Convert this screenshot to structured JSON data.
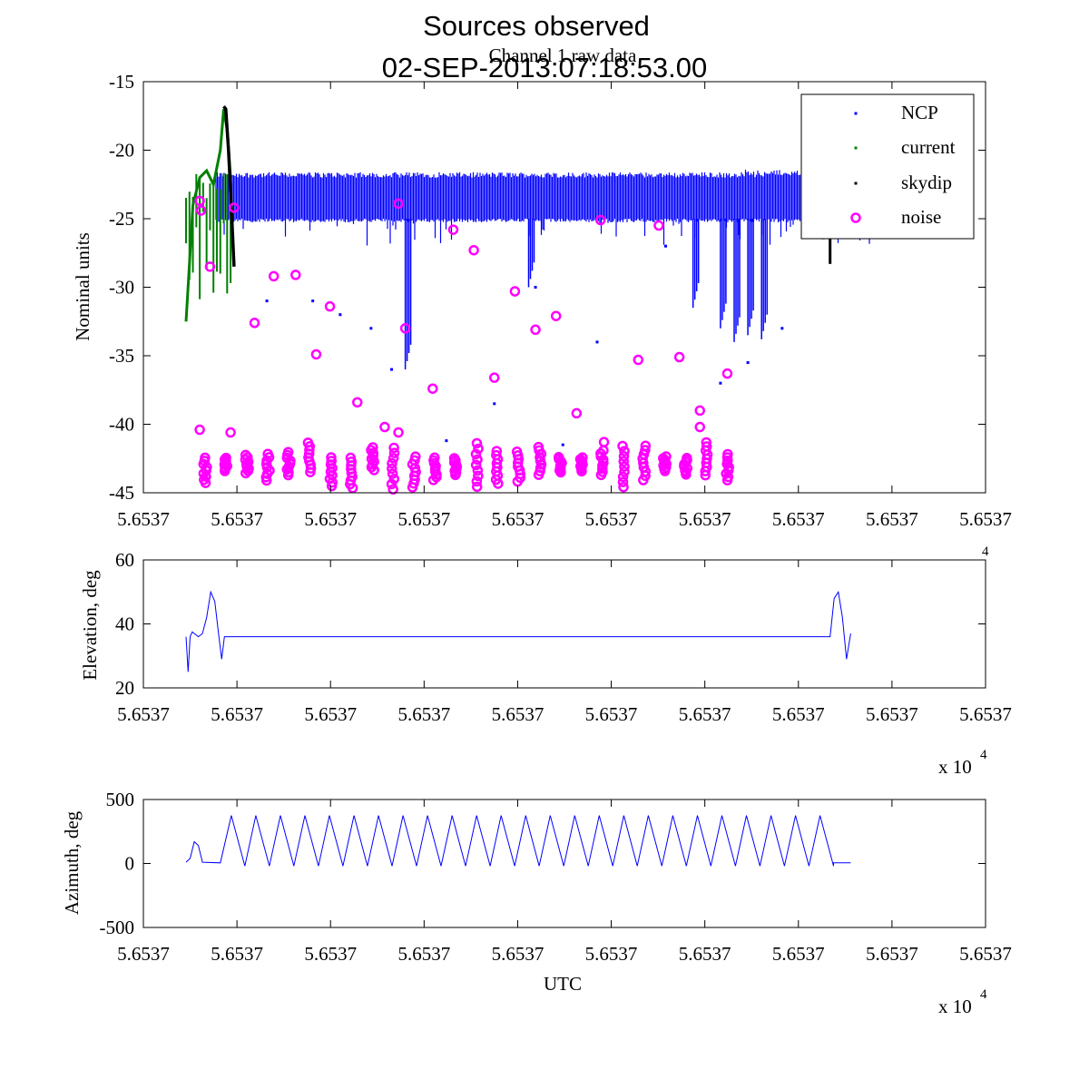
{
  "figure": {
    "title_line1": "Sources observed",
    "title_line2": "02-SEP-2013:07:18:53.00"
  },
  "chart_data": [
    {
      "type": "scatter",
      "title": "Channel 1 raw data",
      "xlabel": "",
      "ylabel": "Nominal units",
      "ylim": [
        -45,
        -15
      ],
      "y_ticks": [
        "-15",
        "-20",
        "-25",
        "-30",
        "-35",
        "-40",
        "-45"
      ],
      "x_tick_labels": [
        "5.6537",
        "5.6537",
        "5.6537",
        "5.6537",
        "5.6537",
        "5.6537",
        "5.6537",
        "5.6537",
        "5.6537",
        "5.6537"
      ],
      "legend": {
        "position": "top-right",
        "entries": [
          "NCP",
          "current",
          "skydip",
          "noise"
        ]
      },
      "series": [
        {
          "name": "NCP",
          "color": "#0000ff",
          "marker": "dot",
          "band": [
            -25,
            -22
          ],
          "dips": [
            {
              "x": 0.32,
              "y": -36.0
            },
            {
              "x": 0.5,
              "y": -30.0
            },
            {
              "x": 0.74,
              "y": -31.5
            },
            {
              "x": 0.78,
              "y": -33.0
            },
            {
              "x": 0.8,
              "y": -34.0
            },
            {
              "x": 0.82,
              "y": -33.5
            },
            {
              "x": 0.84,
              "y": -33.8
            }
          ],
          "outliers": [
            {
              "x": 0.118,
              "y": -31.0
            },
            {
              "x": 0.185,
              "y": -31.0
            },
            {
              "x": 0.225,
              "y": -32.0
            },
            {
              "x": 0.27,
              "y": -33.0
            },
            {
              "x": 0.3,
              "y": -36.0
            },
            {
              "x": 0.38,
              "y": -41.2
            },
            {
              "x": 0.43,
              "y": -41.5
            },
            {
              "x": 0.45,
              "y": -38.5
            },
            {
              "x": 0.51,
              "y": -30.0
            },
            {
              "x": 0.55,
              "y": -41.5
            },
            {
              "x": 0.6,
              "y": -34.0
            },
            {
              "x": 0.7,
              "y": -27.0
            },
            {
              "x": 0.78,
              "y": -37.0
            },
            {
              "x": 0.82,
              "y": -35.5
            },
            {
              "x": 0.87,
              "y": -33.0
            }
          ]
        },
        {
          "name": "current",
          "color": "#008000",
          "marker": "dot",
          "points": [
            [
              0.0,
              -32.5
            ],
            [
              0.01,
              -24.0
            ],
            [
              0.02,
              -22.0
            ],
            [
              0.03,
              -21.5
            ],
            [
              0.04,
              -22.5
            ],
            [
              0.05,
              -20.0
            ],
            [
              0.055,
              -17.0
            ],
            [
              0.06,
              -18.5
            ],
            [
              0.065,
              -22.0
            ]
          ]
        },
        {
          "name": "skydip",
          "color": "#000000",
          "marker": "dot",
          "points": [
            [
              0.055,
              -16.8
            ],
            [
              0.058,
              -17.0
            ],
            [
              0.062,
              -20.0
            ],
            [
              0.066,
              -24.0
            ],
            [
              0.07,
              -28.5
            ]
          ],
          "end_points": [
            [
              0.93,
              -26.5
            ],
            [
              0.94,
              -28.3
            ]
          ]
        },
        {
          "name": "noise",
          "color": "#ff00ff",
          "marker": "circle",
          "scattered": [
            [
              0.02,
              -23.7
            ],
            [
              0.022,
              -24.4
            ],
            [
              0.035,
              -28.5
            ],
            [
              0.07,
              -24.2
            ],
            [
              0.1,
              -32.6
            ],
            [
              0.128,
              -29.2
            ],
            [
              0.16,
              -29.1
            ],
            [
              0.19,
              -34.9
            ],
            [
              0.21,
              -31.4
            ],
            [
              0.25,
              -38.4
            ],
            [
              0.29,
              -40.2
            ],
            [
              0.31,
              -23.9
            ],
            [
              0.32,
              -33.0
            ],
            [
              0.36,
              -37.4
            ],
            [
              0.39,
              -25.8
            ],
            [
              0.42,
              -27.3
            ],
            [
              0.45,
              -36.6
            ],
            [
              0.48,
              -30.3
            ],
            [
              0.51,
              -33.1
            ],
            [
              0.54,
              -32.1
            ],
            [
              0.57,
              -39.2
            ],
            [
              0.605,
              -25.1
            ],
            [
              0.61,
              -41.3
            ],
            [
              0.66,
              -35.3
            ],
            [
              0.69,
              -25.5
            ],
            [
              0.72,
              -35.1
            ],
            [
              0.75,
              -39.0
            ],
            [
              0.75,
              -40.2
            ],
            [
              0.79,
              -36.3
            ],
            [
              0.02,
              -40.4
            ],
            [
              0.065,
              -40.6
            ],
            [
              0.31,
              -40.6
            ]
          ],
          "cluster_y_range": [
            -44.8,
            -41.3
          ]
        }
      ]
    },
    {
      "type": "line",
      "title": "",
      "ylabel": "Elevation, deg",
      "ylim": [
        20,
        60
      ],
      "y_ticks": [
        "60",
        "40",
        "20"
      ],
      "x_tick_labels": [
        "5.6537",
        "5.6537",
        "5.6537",
        "5.6537",
        "5.6537",
        "5.6537",
        "5.6537",
        "5.6537",
        "5.6537",
        "5.6537"
      ],
      "x_exponent": "x 10",
      "x_exponent_power": "4",
      "series": [
        {
          "name": "elevation",
          "color": "#0000ff",
          "points": [
            [
              0.0,
              36.0
            ],
            [
              0.003,
              25.0
            ],
            [
              0.006,
              36.0
            ],
            [
              0.009,
              37.5
            ],
            [
              0.012,
              37.0
            ],
            [
              0.018,
              36.0
            ],
            [
              0.024,
              37.0
            ],
            [
              0.03,
              42.0
            ],
            [
              0.036,
              50.0
            ],
            [
              0.042,
              47.0
            ],
            [
              0.048,
              36.0
            ],
            [
              0.052,
              29.0
            ],
            [
              0.056,
              36.0
            ],
            [
              0.94,
              36.0
            ],
            [
              0.946,
              48.0
            ],
            [
              0.952,
              50.0
            ],
            [
              0.958,
              42.0
            ],
            [
              0.964,
              29.0
            ],
            [
              0.97,
              37.0
            ]
          ]
        }
      ]
    },
    {
      "type": "line",
      "title": "",
      "xlabel": "UTC",
      "ylabel": "Azimuth, deg",
      "ylim": [
        -500,
        500
      ],
      "y_ticks": [
        "500",
        "0",
        "-500"
      ],
      "x_tick_labels": [
        "5.6537",
        "5.6537",
        "5.6537",
        "5.6537",
        "5.6537",
        "5.6537",
        "5.6537",
        "5.6537",
        "5.6537",
        "5.6537"
      ],
      "x_exponent": "x 10",
      "x_exponent_power": "4",
      "series": [
        {
          "name": "azimuth",
          "color": "#0000ff",
          "pre_points": [
            [
              0.0,
              10
            ],
            [
              0.006,
              40
            ],
            [
              0.012,
              170
            ],
            [
              0.018,
              140
            ],
            [
              0.024,
              10
            ],
            [
              0.05,
              5
            ]
          ],
          "cycles": 25,
          "cycle_start": 0.05,
          "cycle_end": 0.945,
          "cycle_high": 375,
          "cycle_low": -20,
          "tail": [
            [
              0.945,
              5
            ],
            [
              0.97,
              5
            ]
          ]
        }
      ]
    }
  ]
}
